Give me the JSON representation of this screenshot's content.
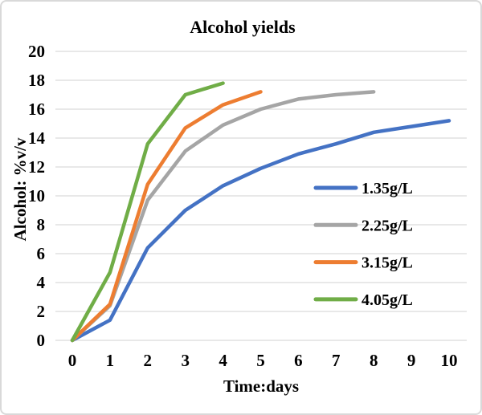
{
  "frame": {
    "background": "#ffffff",
    "border_color": "#d9d9d9"
  },
  "chart_data": {
    "type": "line",
    "title": "Alcohol yields",
    "xlabel": "Time:days",
    "ylabel": "Alcohol: %v/v",
    "xlim": [
      0,
      10
    ],
    "ylim": [
      0,
      20
    ],
    "x_ticks": [
      0,
      1,
      2,
      3,
      4,
      5,
      6,
      7,
      8,
      9,
      10
    ],
    "y_ticks": [
      0,
      2,
      4,
      6,
      8,
      10,
      12,
      14,
      16,
      18,
      20
    ],
    "grid": true,
    "gridline_color": "#d9d9d9",
    "text_color": "#000000",
    "legend_position": "inside-right-middle",
    "series": [
      {
        "name": "1.35g/L",
        "color": "#4472C4",
        "x": [
          0,
          1,
          2,
          3,
          4,
          5,
          6,
          7,
          8,
          9,
          10
        ],
        "values": [
          0,
          1.4,
          6.4,
          9.0,
          10.7,
          11.9,
          12.9,
          13.6,
          14.4,
          14.8,
          15.2
        ]
      },
      {
        "name": "2.25g/L",
        "color": "#A5A5A5",
        "x": [
          0,
          1,
          2,
          3,
          4,
          5,
          6,
          7,
          8
        ],
        "values": [
          0,
          2.4,
          9.7,
          13.1,
          14.9,
          16.0,
          16.7,
          17.0,
          17.2
        ]
      },
      {
        "name": "3.15g/L",
        "color": "#ED7D31",
        "x": [
          0,
          1,
          2,
          3,
          4,
          5
        ],
        "values": [
          0,
          2.5,
          10.8,
          14.7,
          16.3,
          17.2
        ]
      },
      {
        "name": "4.05g/L",
        "color": "#70AD47",
        "x": [
          0,
          1,
          2,
          3,
          4
        ],
        "values": [
          0,
          4.7,
          13.6,
          17.0,
          17.8
        ]
      }
    ]
  }
}
